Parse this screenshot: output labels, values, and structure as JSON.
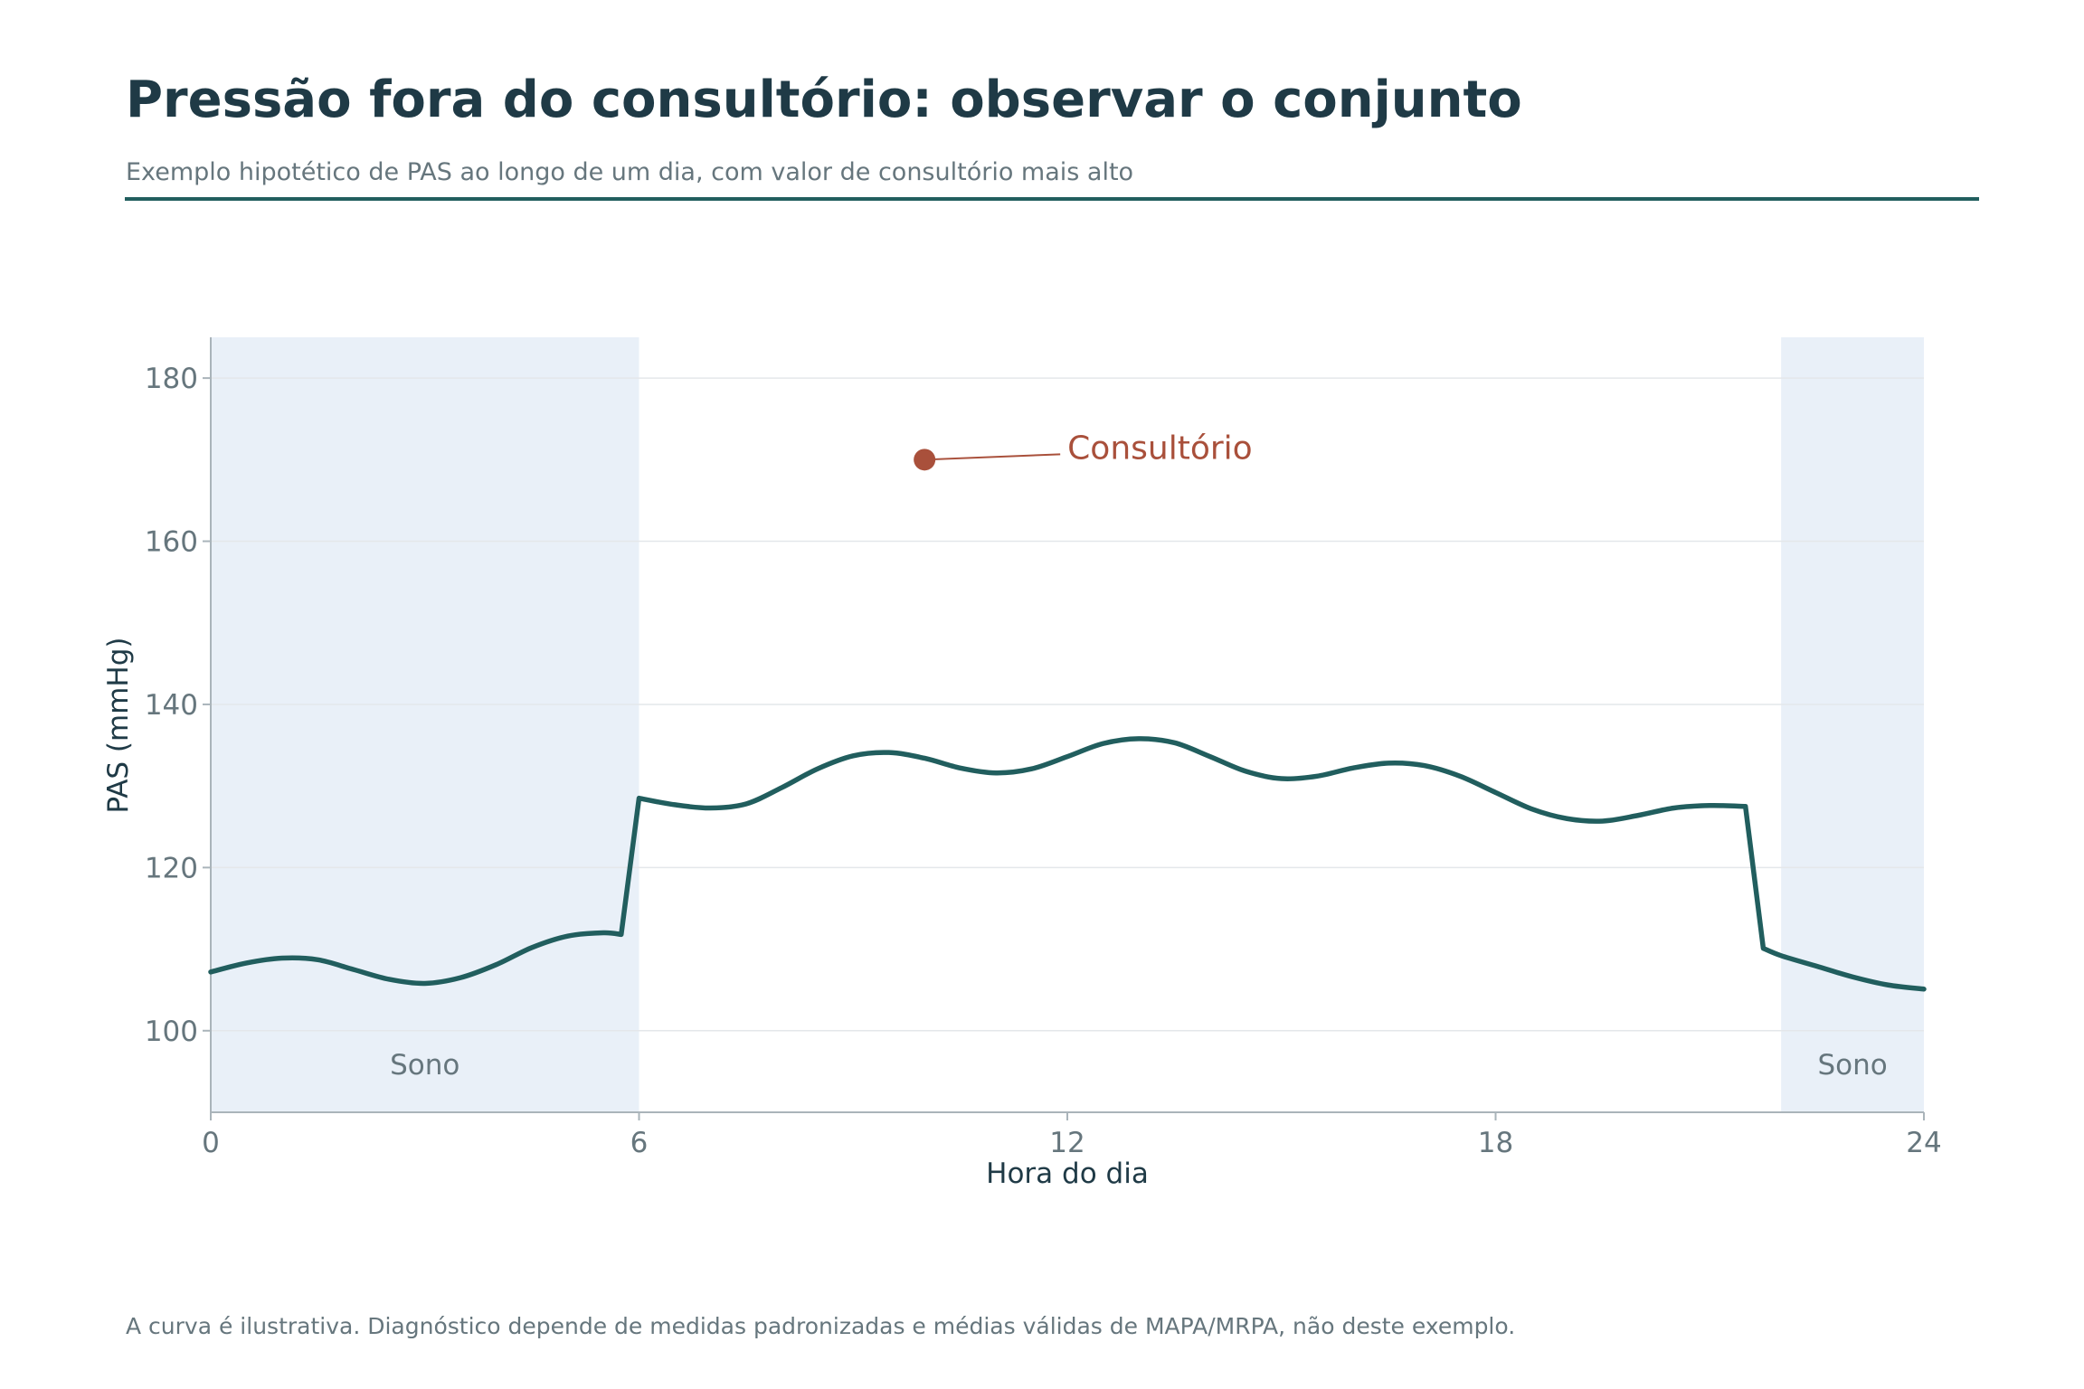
{
  "header": {
    "title": "Pressão fora do consultório: observar o conjunto",
    "subtitle": "Exemplo hipotético de PAS ao longo de um dia, com valor de consultório mais alto"
  },
  "footer": {
    "note": "A curva é ilustrativa. Diagnóstico depende de medidas padronizadas e médias válidas de MAPA/MRPA, não deste exemplo."
  },
  "colors": {
    "line": "#215e5e",
    "office_point": "#a9503b",
    "sleep_band": "#e9f0f8",
    "title": "#1f3a46",
    "muted_text": "#66767d"
  },
  "chart_data": {
    "type": "line",
    "xlabel": "Hora do dia",
    "ylabel": "PAS (mmHg)",
    "xlim": [
      0,
      24
    ],
    "ylim": [
      90,
      185
    ],
    "xticks": [
      0,
      6,
      12,
      18,
      24
    ],
    "yticks": [
      100,
      120,
      140,
      160,
      180
    ],
    "grid": "horizontal",
    "series": [
      {
        "x": [
          0,
          0.5,
          1,
          1.5,
          2,
          2.5,
          3,
          3.5,
          4,
          4.5,
          5,
          5.5,
          5.75,
          6,
          6.5,
          7,
          7.5,
          8,
          8.5,
          9,
          9.5,
          10,
          10.5,
          11,
          11.5,
          12,
          12.5,
          13,
          13.5,
          14,
          14.5,
          15,
          15.5,
          16,
          16.5,
          17,
          17.5,
          18,
          18.5,
          19,
          19.5,
          20,
          20.5,
          21,
          21.5,
          21.75,
          22,
          22.5,
          23,
          23.5,
          24
        ],
        "y": [
          107.2,
          108.3,
          108.9,
          108.7,
          107.5,
          106.3,
          105.8,
          106.5,
          108.1,
          110.2,
          111.6,
          112,
          111.8,
          128.5,
          127.7,
          127.3,
          127.8,
          129.8,
          132.1,
          133.7,
          134.1,
          133.4,
          132.2,
          131.6,
          132.1,
          133.6,
          135.2,
          135.8,
          135.3,
          133.6,
          131.8,
          130.9,
          131.2,
          132.2,
          132.8,
          132.5,
          131.2,
          129.2,
          127.2,
          126,
          125.7,
          126.4,
          127.3,
          127.6,
          127.5,
          110.1,
          109.2,
          107.9,
          106.6,
          105.6,
          105.1
        ]
      }
    ],
    "office_point": {
      "x": 10,
      "y": 170,
      "label": "Consultório"
    },
    "sleep_bands": [
      {
        "from": 0,
        "to": 6,
        "label": "Sono"
      },
      {
        "from": 22,
        "to": 24,
        "label": "Sono"
      }
    ]
  }
}
